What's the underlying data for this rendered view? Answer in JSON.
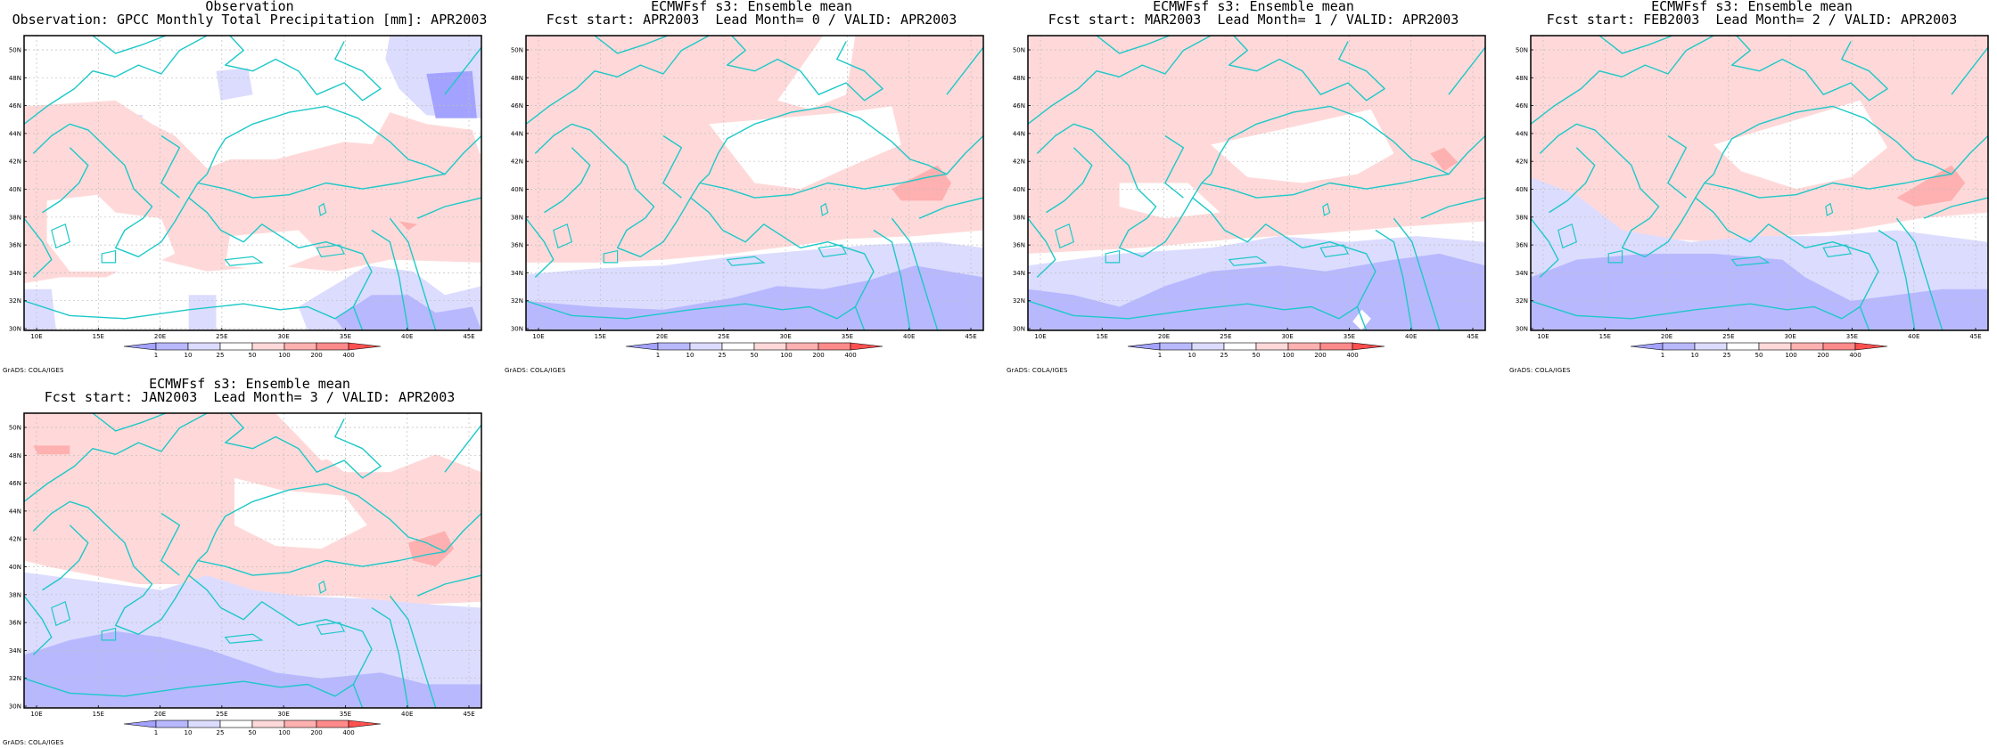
{
  "colors": {
    "dry_strong": "#a3a3ff",
    "dry_mid": "#b8b8ff",
    "dry_light": "#dcdcff",
    "neutral": "#ffffff",
    "wet_light": "#ffd9d9",
    "wet_mid": "#ffb0b0",
    "wet_strong": "#ff8a8a",
    "wet_max": "#ff5050",
    "coast": "#1ec8c8",
    "frame": "#000000",
    "grid": "#bdbdbd"
  },
  "axes": {
    "lon_ticks": [
      "10E",
      "15E",
      "20E",
      "25E",
      "30E",
      "35E",
      "40E",
      "45E"
    ],
    "lat_ticks": [
      "30N",
      "32N",
      "34N",
      "36N",
      "38N",
      "40N",
      "42N",
      "44N",
      "46N",
      "48N",
      "50N"
    ]
  },
  "colorbar": {
    "labels": [
      "1",
      "10",
      "25",
      "50",
      "100",
      "200",
      "400"
    ]
  },
  "credit": "GrADS: COLA/IGES",
  "panels": [
    {
      "title1": "Observation",
      "title2": "Observation: GPCC Monthly Total Precipitation [mm]: APR2003",
      "variant": "obs"
    },
    {
      "title1": "ECMWFsf s3: Ensemble mean",
      "title2": "Fcst start: APR2003  Lead Month= 0 / VALID: APR2003",
      "variant": "lead0"
    },
    {
      "title1": "ECMWFsf s3: Ensemble mean",
      "title2": "Fcst start: MAR2003  Lead Month= 1 / VALID: APR2003",
      "variant": "lead1"
    },
    {
      "title1": "ECMWFsf s3: Ensemble mean",
      "title2": "Fcst start: FEB2003  Lead Month= 2 / VALID: APR2003",
      "variant": "lead2"
    },
    {
      "title1": "ECMWFsf s3: Ensemble mean",
      "title2": "Fcst start: JAN2003  Lead Month= 3 / VALID: APR2003",
      "variant": "lead3"
    }
  ]
}
